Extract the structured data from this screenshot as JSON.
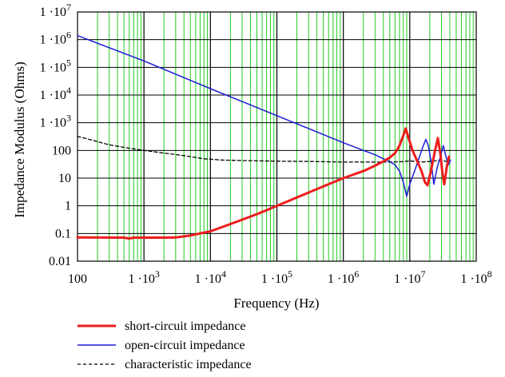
{
  "chart_data": {
    "type": "line",
    "x_scale": "log",
    "y_scale": "log",
    "xlabel": "Frequency (Hz)",
    "ylabel": "Impedance Modulus (Ohms)",
    "xlim": [
      100,
      100000000
    ],
    "ylim": [
      0.01,
      10000000
    ],
    "grid": true,
    "legend_position": "bottom-left",
    "colors": {
      "minor_grid": "#22cc22",
      "major_grid": "#000000"
    },
    "x_ticks": [
      {
        "value": 100,
        "mant": "100",
        "exp": ""
      },
      {
        "value": 1000,
        "mant": "1 ·10",
        "exp": "3"
      },
      {
        "value": 10000,
        "mant": "1 ·10",
        "exp": "4"
      },
      {
        "value": 100000,
        "mant": "1 ·10",
        "exp": "5"
      },
      {
        "value": 1000000,
        "mant": "1 ·10",
        "exp": "6"
      },
      {
        "value": 10000000,
        "mant": "1 ·10",
        "exp": "7"
      },
      {
        "value": 100000000,
        "mant": "1 ·10",
        "exp": "8"
      }
    ],
    "y_ticks": [
      {
        "value": 0.01,
        "mant": "0.01",
        "exp": ""
      },
      {
        "value": 0.1,
        "mant": "0.1",
        "exp": ""
      },
      {
        "value": 1,
        "mant": "1",
        "exp": ""
      },
      {
        "value": 10,
        "mant": "10",
        "exp": ""
      },
      {
        "value": 100,
        "mant": "100",
        "exp": ""
      },
      {
        "value": 1000,
        "mant": "1 ·10",
        "exp": "3"
      },
      {
        "value": 10000,
        "mant": "1 ·10",
        "exp": "4"
      },
      {
        "value": 100000,
        "mant": "1 ·10",
        "exp": "5"
      },
      {
        "value": 1000000,
        "mant": "1 ·10",
        "exp": "6"
      },
      {
        "value": 10000000,
        "mant": "1 ·10",
        "exp": "7"
      }
    ],
    "series": [
      {
        "name": "short-circuit impedance",
        "color": "#ee1c1c",
        "width": 3,
        "dash": "",
        "points": [
          [
            100,
            0.072
          ],
          [
            500,
            0.071
          ],
          [
            600,
            0.066
          ],
          [
            700,
            0.071
          ],
          [
            1000,
            0.071
          ],
          [
            2000,
            0.071
          ],
          [
            3000,
            0.072
          ],
          [
            5000,
            0.085
          ],
          [
            10000,
            0.12
          ],
          [
            20000,
            0.22
          ],
          [
            50000,
            0.5
          ],
          [
            100000,
            1.0
          ],
          [
            200000,
            2.0
          ],
          [
            500000,
            5.0
          ],
          [
            1000000,
            10
          ],
          [
            2000000,
            18
          ],
          [
            3000000,
            28
          ],
          [
            4000000,
            40
          ],
          [
            5000000,
            55
          ],
          [
            6000000,
            80
          ],
          [
            7000000,
            150
          ],
          [
            8000000,
            350
          ],
          [
            8700000,
            620
          ],
          [
            9500000,
            300
          ],
          [
            11000000,
            100
          ],
          [
            13000000,
            40
          ],
          [
            15000000,
            18
          ],
          [
            17000000,
            7
          ],
          [
            18500000,
            5.5
          ],
          [
            21000000,
            20
          ],
          [
            24000000,
            100
          ],
          [
            26500000,
            280
          ],
          [
            29000000,
            70
          ],
          [
            31000000,
            15
          ],
          [
            33000000,
            6
          ],
          [
            36000000,
            25
          ],
          [
            39000000,
            60
          ]
        ]
      },
      {
        "name": "open-circuit impedance",
        "color": "#1c1cd8",
        "width": 1.5,
        "dash": "",
        "points": [
          [
            100,
            1400000
          ],
          [
            1000,
            170000
          ],
          [
            10000,
            17000
          ],
          [
            100000,
            1800
          ],
          [
            1000000,
            190
          ],
          [
            2000000,
            100
          ],
          [
            3000000,
            70
          ],
          [
            4000000,
            50
          ],
          [
            5000000,
            40
          ],
          [
            6000000,
            30
          ],
          [
            7000000,
            18
          ],
          [
            8000000,
            7
          ],
          [
            9000000,
            2.2
          ],
          [
            10000000,
            6
          ],
          [
            12000000,
            20
          ],
          [
            14000000,
            60
          ],
          [
            16000000,
            150
          ],
          [
            17500000,
            250
          ],
          [
            19000000,
            150
          ],
          [
            21000000,
            40
          ],
          [
            23000000,
            6
          ],
          [
            26000000,
            25
          ],
          [
            29000000,
            60
          ],
          [
            32000000,
            150
          ],
          [
            35000000,
            60
          ],
          [
            38000000,
            30
          ],
          [
            41000000,
            45
          ]
        ]
      },
      {
        "name": "characteristic impedance",
        "color": "#000000",
        "width": 1.3,
        "dash": "4,3",
        "points": [
          [
            100,
            320
          ],
          [
            150,
            250
          ],
          [
            300,
            160
          ],
          [
            600,
            120
          ],
          [
            1000,
            100
          ],
          [
            2000,
            80
          ],
          [
            4000,
            65
          ],
          [
            8000,
            50
          ],
          [
            15000,
            45
          ],
          [
            30000,
            43
          ],
          [
            100000,
            41
          ],
          [
            300000,
            40
          ],
          [
            1000000,
            38
          ],
          [
            3000000,
            38
          ],
          [
            5000000,
            38
          ],
          [
            7000000,
            39
          ],
          [
            8500000,
            40
          ],
          [
            10000000,
            42
          ],
          [
            15000000,
            38
          ],
          [
            20000000,
            40
          ],
          [
            25000000,
            42
          ],
          [
            30000000,
            45
          ],
          [
            35000000,
            40
          ],
          [
            40000000,
            38
          ]
        ]
      }
    ]
  }
}
